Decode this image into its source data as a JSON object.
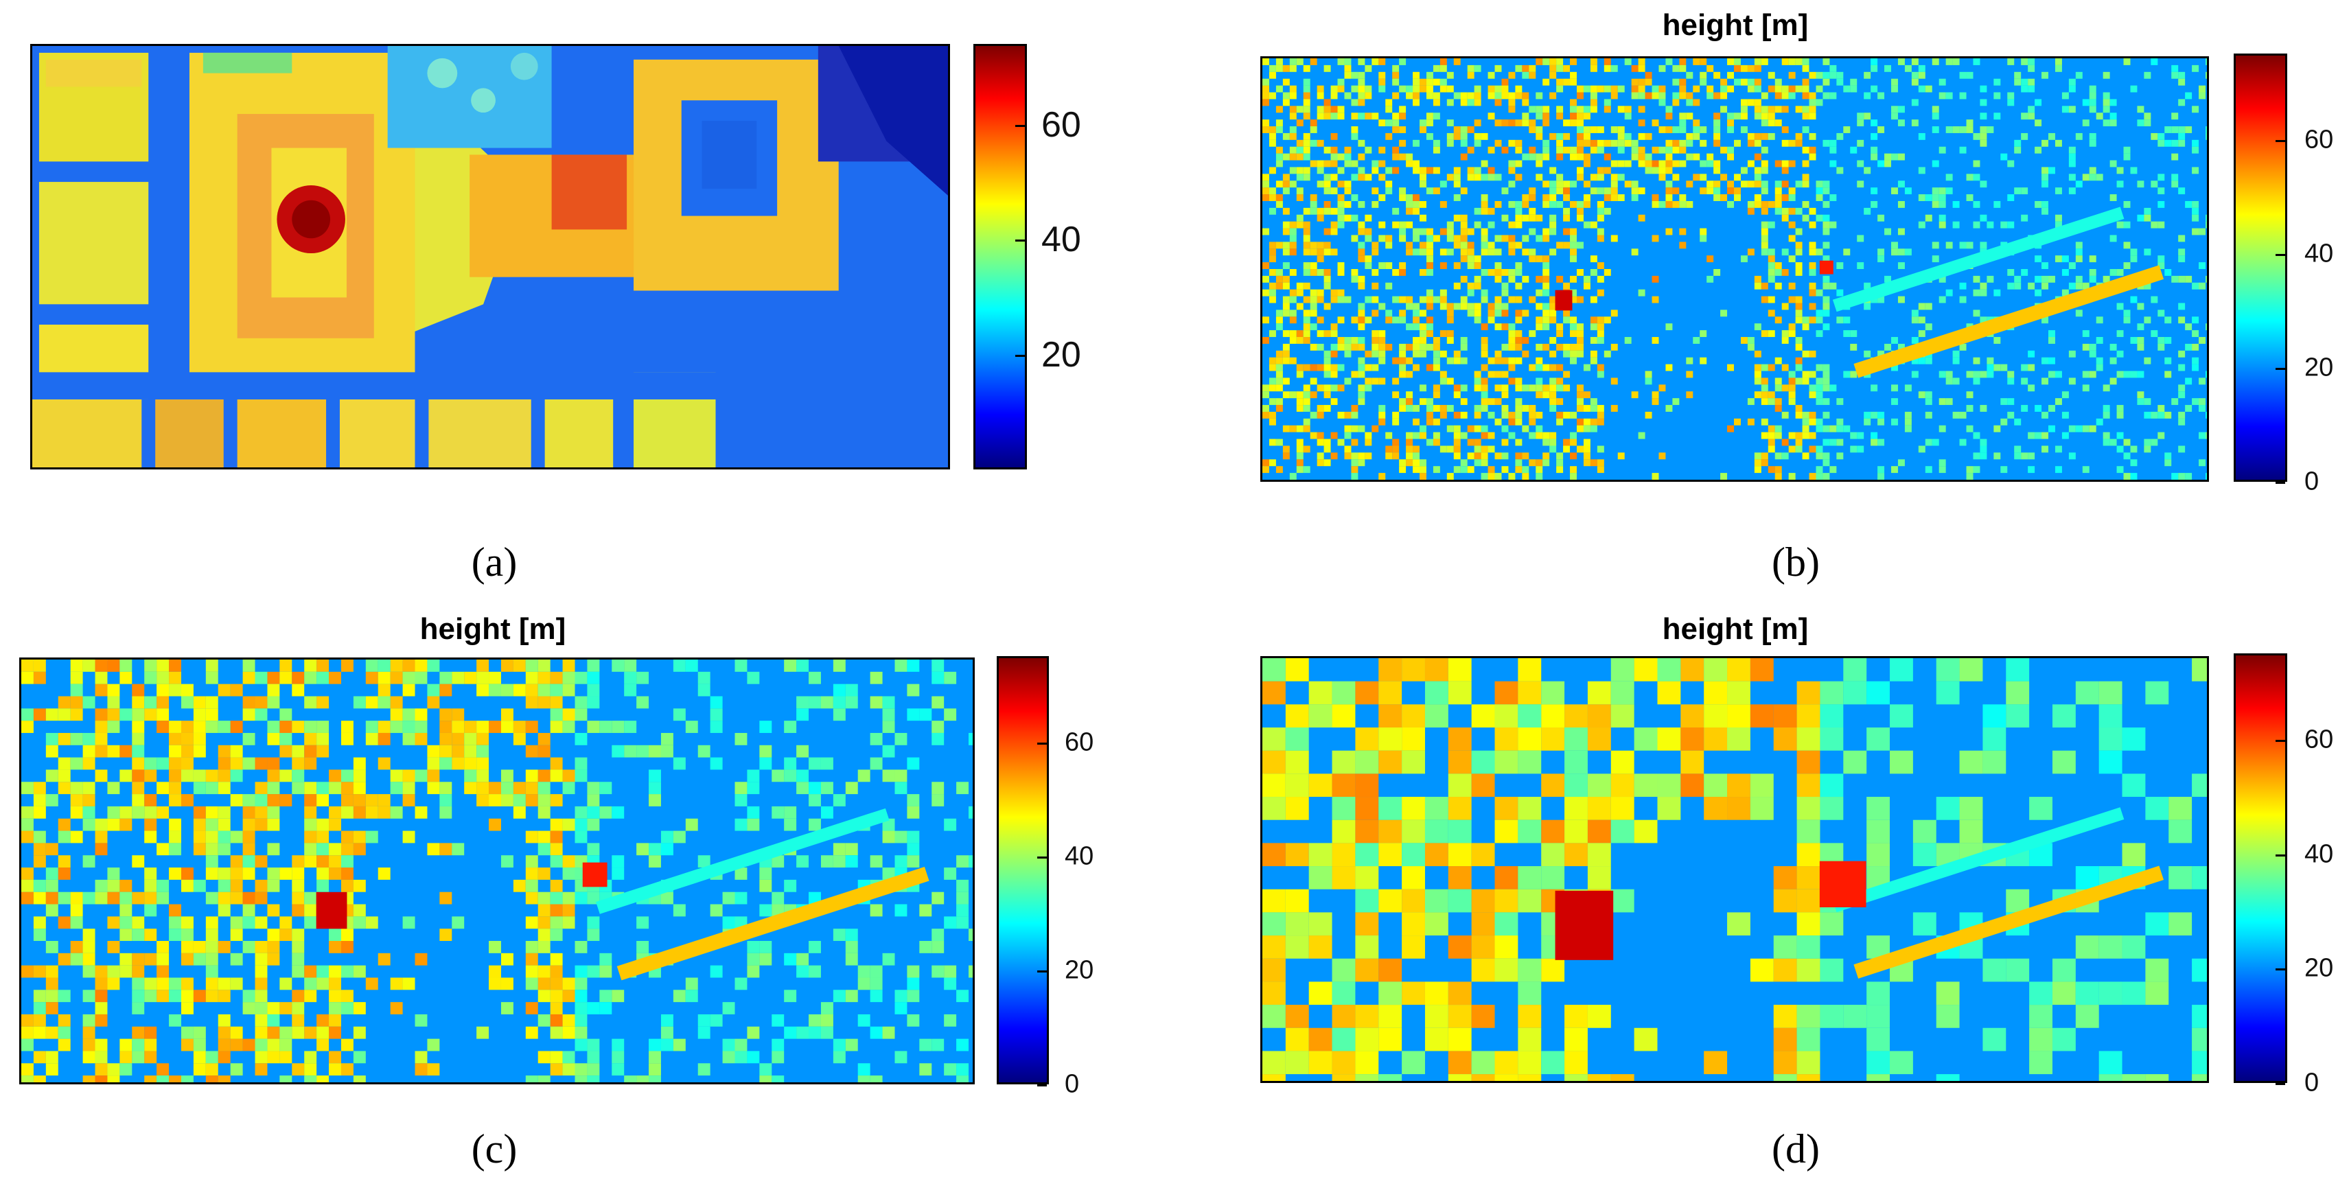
{
  "chart_data": [
    {
      "type": "heatmap",
      "panel": "a",
      "title": "",
      "caption": "(a)",
      "colormap": "jet",
      "colorbar": {
        "ticks": [
          20,
          40,
          60
        ],
        "tick_labels": [
          "20",
          "40",
          "60"
        ],
        "clim": [
          3,
          77
        ]
      }
    },
    {
      "type": "heatmap",
      "panel": "b",
      "title": "height [m]",
      "caption": "(b)",
      "colormap": "jet",
      "colorbar": {
        "ticks": [
          0,
          20,
          40,
          60
        ],
        "tick_labels": [
          "0",
          "20",
          "40",
          "60"
        ],
        "clim": [
          0,
          75
        ]
      }
    },
    {
      "type": "heatmap",
      "panel": "c",
      "title": "height [m]",
      "caption": "(c)",
      "colormap": "jet",
      "colorbar": {
        "ticks": [
          0,
          20,
          40,
          60
        ],
        "tick_labels": [
          "0",
          "20",
          "40",
          "60"
        ],
        "clim": [
          0,
          75
        ]
      }
    },
    {
      "type": "heatmap",
      "panel": "d",
      "title": "height [m]",
      "caption": "(d)",
      "colormap": "jet",
      "colorbar": {
        "ticks": [
          0,
          20,
          40,
          60
        ],
        "tick_labels": [
          "0",
          "20",
          "40",
          "60"
        ],
        "clim": [
          0,
          75
        ]
      }
    }
  ],
  "colors": {
    "ground": "#1e6cf0",
    "building_low": "#6fe07a",
    "building_mid": "#f5e02a",
    "building_high": "#f59a20",
    "peak": "#b00000"
  }
}
